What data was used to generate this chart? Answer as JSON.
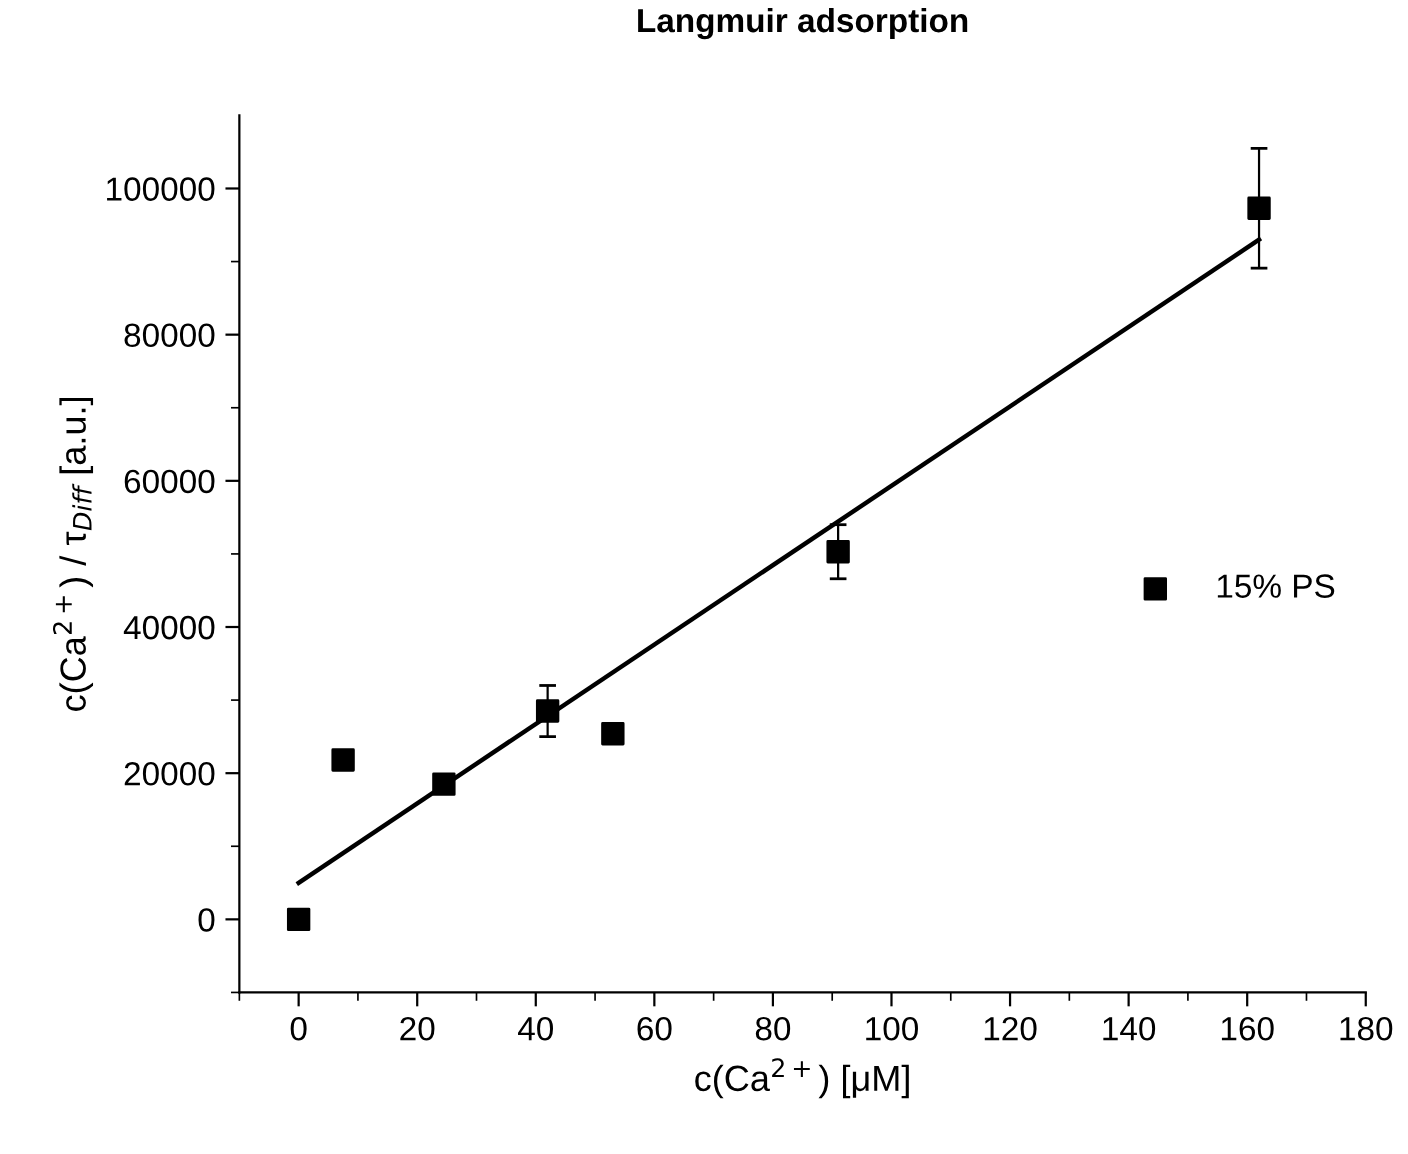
{
  "chart_data": {
    "type": "scatter",
    "title": "Langmuir adsorption",
    "xlabel": "c(Ca$^{2+}$) [μM]",
    "ylabel": "c(Ca$^{2+}$) / τ$_{Diff}$ [a.u.]",
    "xlim": [
      -10,
      180
    ],
    "xticks": [
      0,
      20,
      40,
      60,
      80,
      100,
      120,
      140,
      160,
      180
    ],
    "ylim": [
      -10000,
      110000
    ],
    "yticks": [
      0,
      20000,
      40000,
      60000,
      80000,
      100000
    ],
    "legend": "right",
    "grid": false,
    "series": [
      {
        "name": "15% PS",
        "marker": "square",
        "color": "#000000",
        "x": [
          0,
          7.5,
          24.5,
          42,
          53,
          91,
          162
        ],
        "values": [
          0,
          21800,
          18500,
          28500,
          25400,
          50300,
          97300
        ],
        "errors": [
          null,
          null,
          null,
          3500,
          1200,
          3700,
          8200
        ]
      },
      {
        "type": "line",
        "marker": "none",
        "color": "#000000",
        "x": [
          0,
          162
        ],
        "values": [
          5000,
          93000
        ]
      }
    ]
  }
}
